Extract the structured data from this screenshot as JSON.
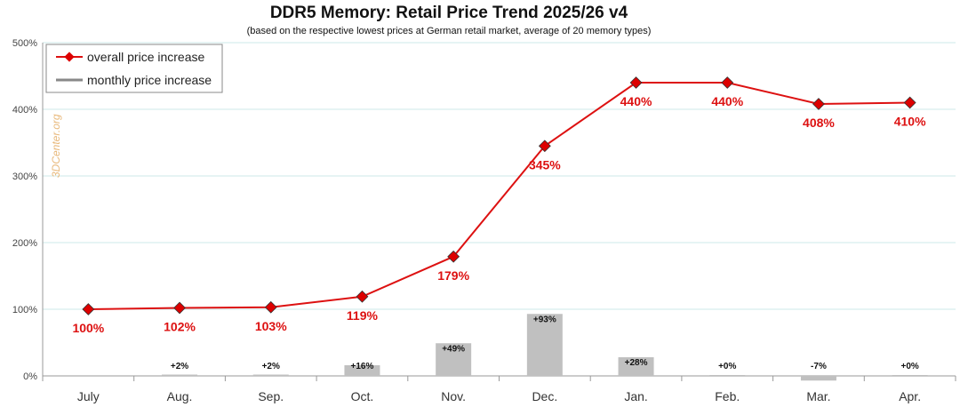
{
  "colors": {
    "overall_line": "#dd1111",
    "marker": "#dd0000",
    "monthly_bar": "#c0c0c0",
    "grid": "#cde8e8",
    "axis": "#999999",
    "watermark": "#e8b87a"
  },
  "watermark": "3DCenter.org",
  "chart_data": {
    "type": "line",
    "title": "DDR5 Memory: Retail Price Trend 2025/26 v4",
    "subtitle": "(based on the respective lowest prices at German retail market, average of 20 memory types)",
    "xlabel": "",
    "ylabel": "",
    "ylim": [
      0,
      500
    ],
    "yticks": [
      "0%",
      "100%",
      "200%",
      "300%",
      "400%",
      "500%"
    ],
    "grid": true,
    "legend_position": "top-left",
    "categories": [
      "July",
      "Aug.",
      "Sep.",
      "Oct.",
      "Nov.",
      "Dec.",
      "Jan.",
      "Feb.",
      "Mar.",
      "Apr."
    ],
    "series": [
      {
        "name": "overall price increase",
        "kind": "line",
        "values": [
          100,
          102,
          103,
          119,
          179,
          345,
          440,
          440,
          408,
          410
        ],
        "labels": [
          "100%",
          "102%",
          "103%",
          "119%",
          "179%",
          "345%",
          "440%",
          "440%",
          "408%",
          "410%"
        ]
      },
      {
        "name": "monthly price increase",
        "kind": "bar",
        "values": [
          null,
          2,
          2,
          16,
          49,
          93,
          28,
          0,
          -7,
          0
        ],
        "labels": [
          "",
          "+2%",
          "+2%",
          "+16%",
          "+49%",
          "+93%",
          "+28%",
          "+0%",
          "-7%",
          "+0%"
        ]
      }
    ]
  }
}
